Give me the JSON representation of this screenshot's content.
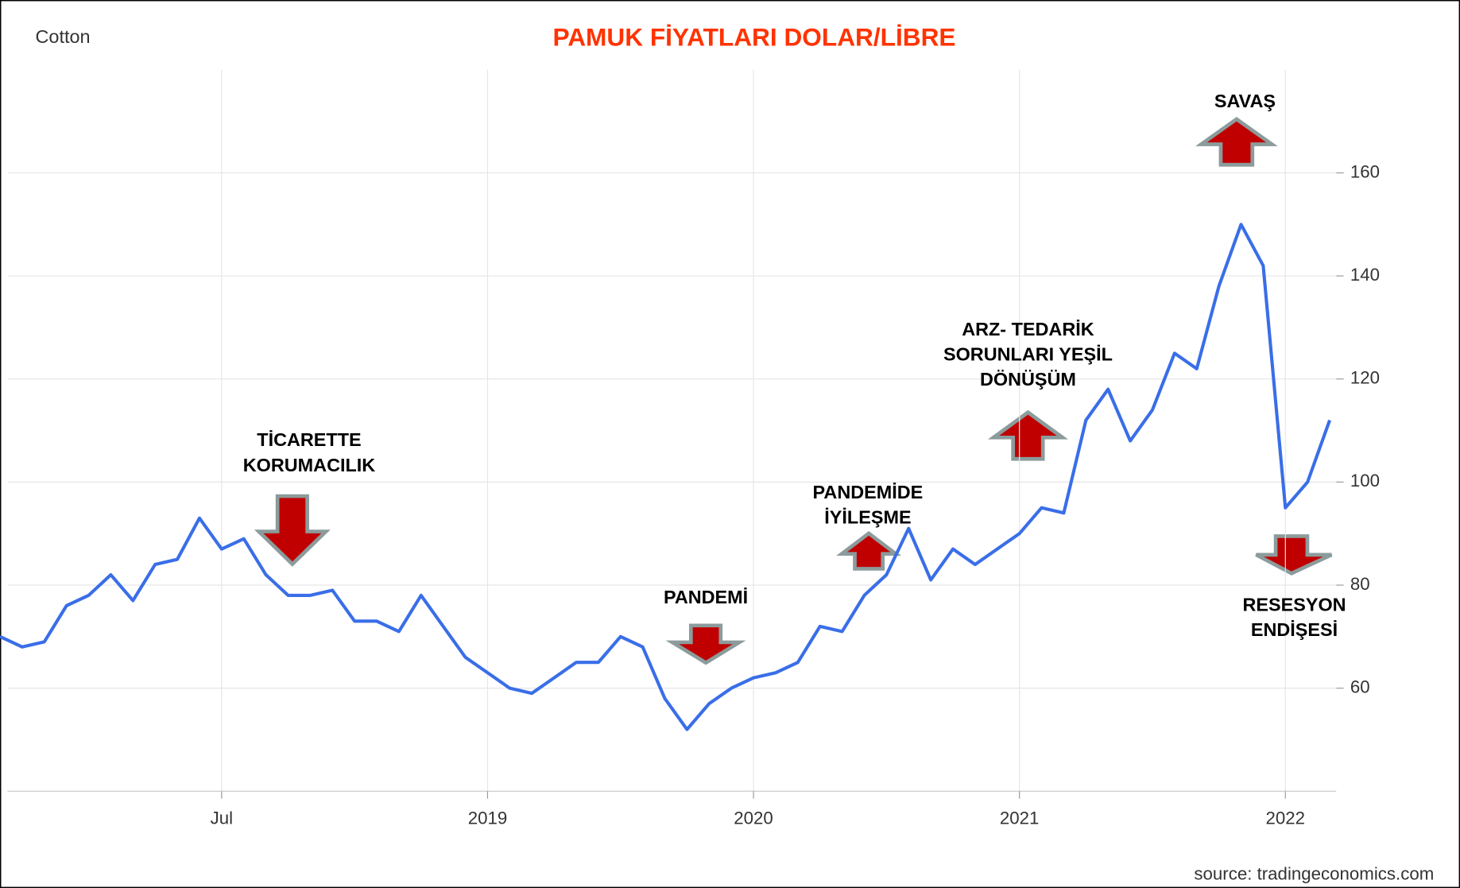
{
  "chart_data": {
    "type": "line",
    "title": "PAMUK FİYATLARI DOLAR/LİBRE",
    "label": "Cotton",
    "source": "source: tradingeconomics.com",
    "x": [
      "2017-09",
      "2017-10",
      "2017-11",
      "2017-12",
      "2018-01",
      "2018-02",
      "2018-03",
      "2018-04",
      "2018-05",
      "2018-06",
      "2018-07",
      "2018-08",
      "2018-09",
      "2018-10",
      "2018-11",
      "2018-12",
      "2019-01",
      "2019-02",
      "2019-03",
      "2019-04",
      "2019-05",
      "2019-06",
      "2019-07",
      "2019-08",
      "2019-09",
      "2019-10",
      "2019-11",
      "2019-12",
      "2020-01",
      "2020-02",
      "2020-03",
      "2020-04",
      "2020-05",
      "2020-06",
      "2020-07",
      "2020-08",
      "2020-09",
      "2020-10",
      "2020-11",
      "2020-12",
      "2021-01",
      "2021-02",
      "2021-03",
      "2021-04",
      "2021-05",
      "2021-06",
      "2021-07",
      "2021-08",
      "2021-09",
      "2021-10",
      "2021-11",
      "2021-12",
      "2022-01",
      "2022-02",
      "2022-03",
      "2022-04",
      "2022-05",
      "2022-06",
      "2022-07",
      "2022-08",
      "2022-09"
    ],
    "series": [
      {
        "name": "Cotton",
        "color": "#3a6ee8",
        "values": [
          70,
          68,
          69,
          76,
          78,
          82,
          77,
          84,
          85,
          93,
          87,
          89,
          82,
          78,
          78,
          79,
          73,
          73,
          71,
          78,
          72,
          66,
          63,
          60,
          59,
          62,
          65,
          65,
          70,
          68,
          58,
          52,
          57,
          60,
          62,
          63,
          65,
          72,
          71,
          78,
          82,
          91,
          81,
          87,
          84,
          87,
          90,
          95,
          94,
          112,
          118,
          108,
          114,
          125,
          122,
          138,
          150,
          142,
          95,
          100,
          112
        ]
      }
    ],
    "xlim": [
      "2017-09",
      "2022-09"
    ],
    "xticks": [
      {
        "value": "2018-07",
        "label": "Jul"
      },
      {
        "value": "2019-07",
        "label": "2019"
      },
      {
        "value": "2020-07",
        "label": "2020"
      },
      {
        "value": "2021-07",
        "label": "2021"
      },
      {
        "value": "2022-07",
        "label": "2022"
      }
    ],
    "ylim": [
      40,
      180
    ],
    "yticks": [
      60,
      80,
      100,
      120,
      140,
      160
    ],
    "grid": true,
    "annotations": [
      {
        "lines": [
          "TİCARETTE",
          "KORUMACILIK"
        ]
      },
      {
        "lines": [
          "PANDEMİ"
        ]
      },
      {
        "lines": [
          "PANDEMİDE",
          "İYİLEŞME"
        ]
      },
      {
        "lines": [
          "ARZ- TEDARİK",
          "SORUNLARI YEŞİL",
          "DÖNÜŞÜM"
        ]
      },
      {
        "lines": [
          "SAVAŞ"
        ]
      },
      {
        "lines": [
          "RESESYON",
          "ENDİŞESİ"
        ]
      }
    ]
  }
}
